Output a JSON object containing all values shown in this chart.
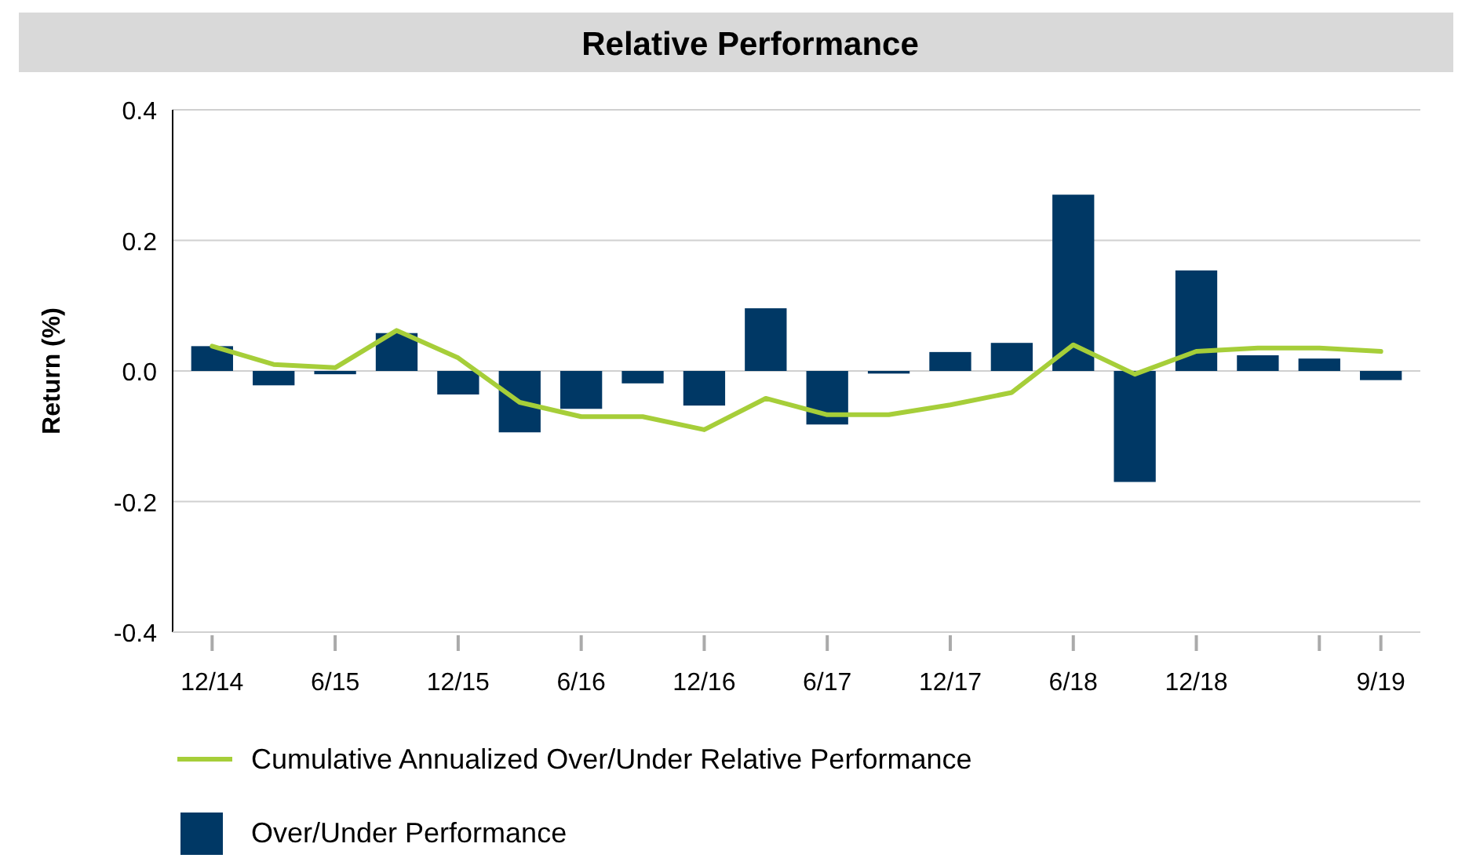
{
  "chart_data": {
    "type": "bar",
    "title": "Relative Performance",
    "ylabel": "Return (%)",
    "categories": [
      "12/14",
      null,
      "6/15",
      null,
      "12/15",
      null,
      "6/16",
      null,
      "12/16",
      null,
      "6/17",
      null,
      "12/17",
      null,
      "6/18",
      null,
      "12/18",
      null,
      null,
      "9/19"
    ],
    "series": [
      {
        "name": "Cumulative Annualized Over/Under Relative Performance",
        "type": "line",
        "color": "#a6ce39",
        "values": [
          0.038,
          0.01,
          0.005,
          0.062,
          0.02,
          -0.048,
          -0.07,
          -0.07,
          -0.09,
          -0.042,
          -0.067,
          -0.067,
          -0.052,
          -0.033,
          0.04,
          -0.005,
          0.03,
          0.035,
          0.035,
          0.03
        ]
      },
      {
        "name": "Over/Under Performance",
        "color": "#003865",
        "values": [
          0.038,
          -0.022,
          -0.005,
          0.058,
          -0.036,
          -0.094,
          -0.058,
          -0.019,
          -0.053,
          0.096,
          -0.082,
          -0.004,
          0.029,
          0.043,
          0.27,
          -0.17,
          0.154,
          0.024,
          0.019,
          -0.014
        ]
      }
    ],
    "ylim": [
      -0.4,
      0.4
    ],
    "yticks": [
      {
        "value": -0.4,
        "label": "-0.4"
      },
      {
        "value": -0.2,
        "label": "-0.2"
      },
      {
        "value": 0,
        "label": "0.0"
      },
      {
        "value": 0.2,
        "label": "0.2"
      },
      {
        "value": 0.4,
        "label": "0.4"
      }
    ],
    "grid": "y",
    "legend": "bottom",
    "marker": "none",
    "line_style": "solid"
  }
}
